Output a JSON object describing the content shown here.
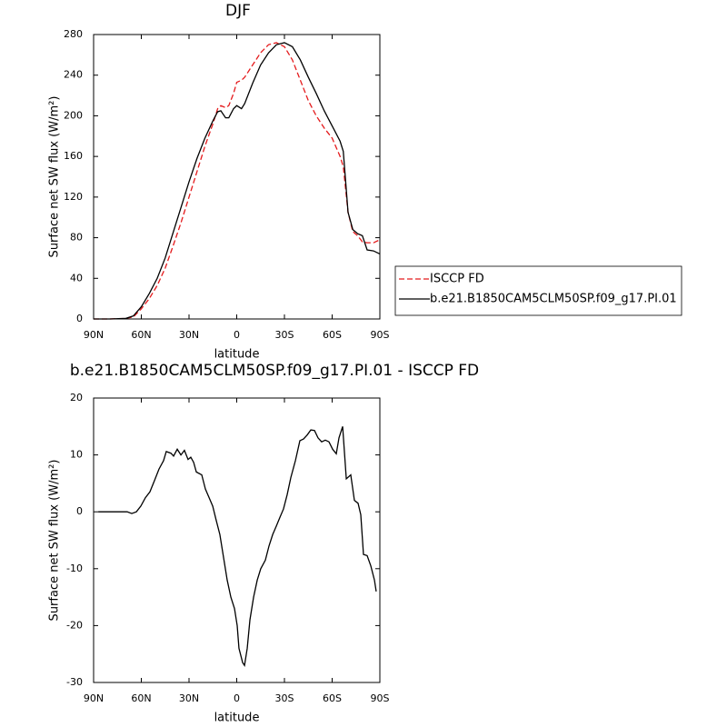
{
  "chart_data": [
    {
      "type": "line",
      "title": "DJF",
      "xlabel": "latitude",
      "ylabel": "Surface net SW flux (W/m²)",
      "x": [
        90,
        80,
        70,
        65,
        60,
        55,
        50,
        45,
        40,
        35,
        30,
        25,
        20,
        15,
        12,
        10,
        7,
        5,
        2,
        0,
        -3,
        -5,
        -10,
        -15,
        -20,
        -25,
        -30,
        -35,
        -40,
        -45,
        -50,
        -55,
        -60,
        -65,
        -67,
        -70,
        -73,
        -76,
        -79,
        -82,
        -86,
        -90
      ],
      "series": [
        {
          "name": "ISCCP FD",
          "color": "#e41a1c",
          "dashed": true,
          "values": [
            0,
            0,
            0.5,
            2,
            10,
            20,
            33,
            50,
            72,
            95,
            120,
            145,
            170,
            192,
            207,
            210,
            208,
            210,
            222,
            233,
            235,
            238,
            250,
            262,
            270,
            272,
            268,
            255,
            235,
            215,
            200,
            188,
            178,
            160,
            150,
            105,
            86,
            82,
            76,
            75,
            75,
            78
          ]
        },
        {
          "name": "b.e21.B1850CAM5CLM50SP.f09_g17.PI.01",
          "color": "#000000",
          "dashed": false,
          "values": [
            0,
            0,
            0.5,
            3,
            12,
            25,
            40,
            60,
            85,
            110,
            135,
            158,
            178,
            195,
            204,
            205,
            198,
            198,
            207,
            210,
            207,
            212,
            232,
            250,
            262,
            270,
            272,
            268,
            255,
            238,
            222,
            205,
            190,
            175,
            165,
            105,
            88,
            84,
            82,
            68,
            67,
            64
          ]
        }
      ],
      "xlim": [
        90,
        -90
      ],
      "ylim": [
        0,
        280
      ],
      "xticks": [
        {
          "value": 90,
          "label": "90N"
        },
        {
          "value": 60,
          "label": "60N"
        },
        {
          "value": 30,
          "label": "30N"
        },
        0,
        {
          "value": -30,
          "label": "30S"
        },
        {
          "value": -60,
          "label": "60S"
        },
        {
          "value": -90,
          "label": "90S"
        }
      ],
      "yticks": [
        0,
        40,
        80,
        120,
        160,
        200,
        240,
        280
      ],
      "legend": "right"
    },
    {
      "type": "line",
      "title": "b.e21.B1850CAM5CLM50SP.f09_g17.PI.01 - ISCCP FD",
      "xlabel": "latitude",
      "ylabel": "Surface net SW flux (W/m²)",
      "x": [
        87.1,
        68.9,
        66.0,
        63.1,
        60.3,
        57.4,
        54.6,
        51.7,
        48.9,
        46.0,
        44.3,
        41.4,
        39.7,
        37.4,
        35.1,
        32.9,
        30.6,
        28.9,
        27.1,
        25.4,
        22.0,
        19.7,
        17.4,
        15.1,
        12.9,
        10.6,
        8.3,
        6.0,
        3.7,
        1.4,
        -0.3,
        -1.4,
        -3.7,
        -4.9,
        -6.6,
        -8.3,
        -10.6,
        -12.9,
        -15.1,
        -18.0,
        -20.3,
        -22.6,
        -24.9,
        -27.1,
        -29.4,
        -31.7,
        -34.0,
        -36.9,
        -39.7,
        -42.0,
        -44.3,
        -46.6,
        -48.9,
        -51.1,
        -53.4,
        -55.7,
        -58.0,
        -60.3,
        -62.6,
        -64.3,
        -66.6,
        -68.9,
        -71.7,
        -74.0,
        -76.3,
        -78.0,
        -79.7,
        -82.0,
        -84.3,
        -86.6,
        -87.7
      ],
      "series": [
        {
          "color": "#000000",
          "dashed": false,
          "values": [
            0,
            0,
            -0.3,
            0,
            1,
            2.5,
            3.5,
            5.5,
            7.5,
            9,
            10.6,
            10.3,
            9.8,
            11,
            10,
            10.8,
            9.2,
            9.6,
            8.7,
            7,
            6.5,
            4,
            2.5,
            1,
            -1.5,
            -4,
            -8,
            -12,
            -15,
            -17,
            -20,
            -24,
            -26.5,
            -27,
            -24,
            -19,
            -15,
            -12,
            -10,
            -8.5,
            -6,
            -4,
            -2.5,
            -1,
            0.5,
            3,
            6,
            9,
            12.5,
            12.8,
            13.5,
            14.4,
            14.3,
            13,
            12.3,
            12.6,
            12.3,
            11,
            10.2,
            13,
            15,
            5.8,
            6.5,
            2,
            1.5,
            -0.5,
            -7.5,
            -7.7,
            -9.5,
            -12,
            -14
          ]
        }
      ],
      "xlim": [
        90,
        -90
      ],
      "ylim": [
        -30,
        20
      ],
      "xticks": [
        {
          "value": 90,
          "label": "90N"
        },
        {
          "value": 60,
          "label": "60N"
        },
        {
          "value": 30,
          "label": "30N"
        },
        0,
        {
          "value": -30,
          "label": "30S"
        },
        {
          "value": -60,
          "label": "60S"
        },
        {
          "value": -90,
          "label": "90S"
        }
      ],
      "yticks": [
        -30,
        -20,
        -10,
        0,
        10,
        20
      ]
    }
  ]
}
